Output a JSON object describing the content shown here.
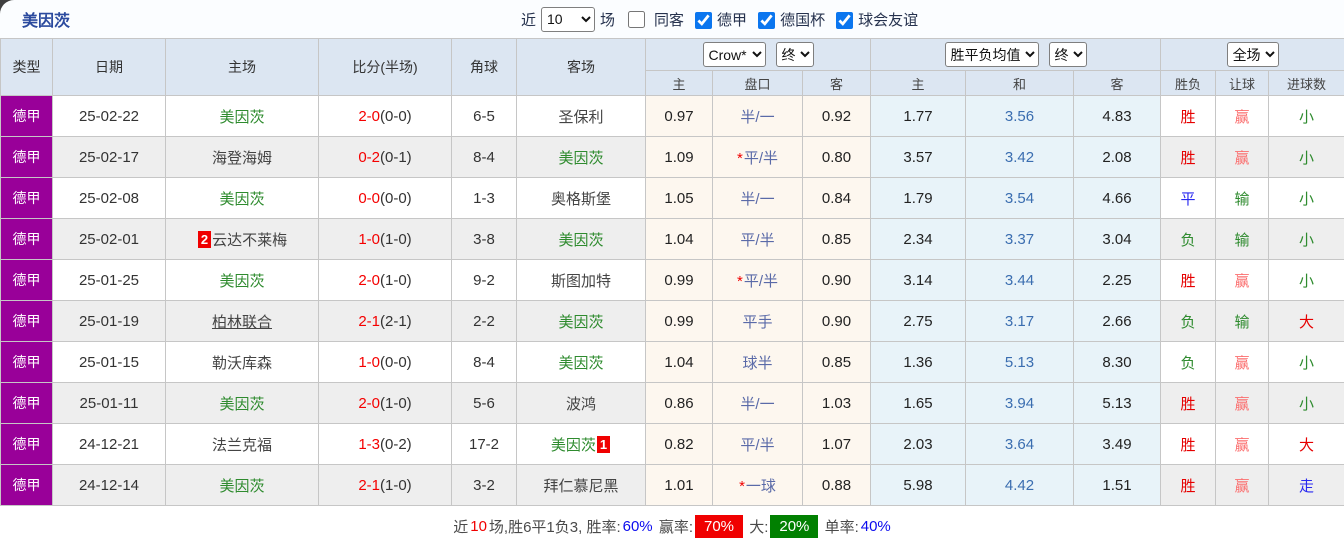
{
  "title": "美因茨",
  "topbar": {
    "near_label": "近",
    "count_selected": "10",
    "games_label": "场",
    "same_away_label": "同客",
    "same_away_checked": false,
    "filters": [
      {
        "label": "德甲",
        "checked": true
      },
      {
        "label": "德国杯",
        "checked": true
      },
      {
        "label": "球会友谊",
        "checked": true
      }
    ]
  },
  "header": {
    "type": "类型",
    "date": "日期",
    "home": "主场",
    "score": "比分(半场)",
    "corner": "角球",
    "away": "客场",
    "odds_company_selected": "Crow*",
    "odds_period_selected": "终",
    "avg_selected": "胜平负均值",
    "avg_period_selected": "终",
    "scope_selected": "全场",
    "sub": {
      "odds_home": "主",
      "handicap": "盘口",
      "odds_away": "客",
      "avg_home": "主",
      "avg_draw": "和",
      "avg_away": "客",
      "result": "胜负",
      "handicap_result": "让球",
      "goals": "进球数"
    }
  },
  "rows": [
    {
      "type": "德甲",
      "date": "25-02-22",
      "home": {
        "name": "美因茨",
        "green": true,
        "underline": false,
        "badge_before": "",
        "badge_after": ""
      },
      "score": {
        "ft": "2-0",
        "ht": "(0-0)"
      },
      "corner": "6-5",
      "away": {
        "name": "圣保利",
        "green": false,
        "underline": false,
        "badge_before": "",
        "badge_after": ""
      },
      "crow": {
        "home": "0.97",
        "star": false,
        "handicap": "半/一",
        "away": "0.92"
      },
      "avg": {
        "home": "1.77",
        "draw": "3.56",
        "away": "4.83"
      },
      "result": {
        "text": "胜",
        "color": "red"
      },
      "rq": {
        "text": "赢",
        "color": "pink"
      },
      "goal": {
        "text": "小",
        "color": "green"
      }
    },
    {
      "type": "德甲",
      "date": "25-02-17",
      "home": {
        "name": "海登海姆",
        "green": false,
        "underline": false,
        "badge_before": "",
        "badge_after": ""
      },
      "score": {
        "ft": "0-2",
        "ht": "(0-1)"
      },
      "corner": "8-4",
      "away": {
        "name": "美因茨",
        "green": true,
        "underline": false,
        "badge_before": "",
        "badge_after": ""
      },
      "crow": {
        "home": "1.09",
        "star": true,
        "handicap": "平/半",
        "away": "0.80"
      },
      "avg": {
        "home": "3.57",
        "draw": "3.42",
        "away": "2.08"
      },
      "result": {
        "text": "胜",
        "color": "red"
      },
      "rq": {
        "text": "赢",
        "color": "pink"
      },
      "goal": {
        "text": "小",
        "color": "green"
      }
    },
    {
      "type": "德甲",
      "date": "25-02-08",
      "home": {
        "name": "美因茨",
        "green": true,
        "underline": false,
        "badge_before": "",
        "badge_after": ""
      },
      "score": {
        "ft": "0-0",
        "ht": "(0-0)"
      },
      "corner": "1-3",
      "away": {
        "name": "奥格斯堡",
        "green": false,
        "underline": false,
        "badge_before": "",
        "badge_after": ""
      },
      "crow": {
        "home": "1.05",
        "star": false,
        "handicap": "半/一",
        "away": "0.84"
      },
      "avg": {
        "home": "1.79",
        "draw": "3.54",
        "away": "4.66"
      },
      "result": {
        "text": "平",
        "color": "blue"
      },
      "rq": {
        "text": "输",
        "color": "green"
      },
      "goal": {
        "text": "小",
        "color": "green"
      }
    },
    {
      "type": "德甲",
      "date": "25-02-01",
      "home": {
        "name": "云达不莱梅",
        "green": false,
        "underline": false,
        "badge_before": "2",
        "badge_after": ""
      },
      "score": {
        "ft": "1-0",
        "ht": "(1-0)"
      },
      "corner": "3-8",
      "away": {
        "name": "美因茨",
        "green": true,
        "underline": false,
        "badge_before": "",
        "badge_after": ""
      },
      "crow": {
        "home": "1.04",
        "star": false,
        "handicap": "平/半",
        "away": "0.85"
      },
      "avg": {
        "home": "2.34",
        "draw": "3.37",
        "away": "3.04"
      },
      "result": {
        "text": "负",
        "color": "green"
      },
      "rq": {
        "text": "输",
        "color": "green"
      },
      "goal": {
        "text": "小",
        "color": "green"
      }
    },
    {
      "type": "德甲",
      "date": "25-01-25",
      "home": {
        "name": "美因茨",
        "green": true,
        "underline": false,
        "badge_before": "",
        "badge_after": ""
      },
      "score": {
        "ft": "2-0",
        "ht": "(1-0)"
      },
      "corner": "9-2",
      "away": {
        "name": "斯图加特",
        "green": false,
        "underline": false,
        "badge_before": "",
        "badge_after": ""
      },
      "crow": {
        "home": "0.99",
        "star": true,
        "handicap": "平/半",
        "away": "0.90"
      },
      "avg": {
        "home": "3.14",
        "draw": "3.44",
        "away": "2.25"
      },
      "result": {
        "text": "胜",
        "color": "red"
      },
      "rq": {
        "text": "赢",
        "color": "pink"
      },
      "goal": {
        "text": "小",
        "color": "green"
      }
    },
    {
      "type": "德甲",
      "date": "25-01-19",
      "home": {
        "name": "柏林联合",
        "green": false,
        "underline": true,
        "badge_before": "",
        "badge_after": ""
      },
      "score": {
        "ft": "2-1",
        "ht": "(2-1)"
      },
      "corner": "2-2",
      "away": {
        "name": "美因茨",
        "green": true,
        "underline": false,
        "badge_before": "",
        "badge_after": ""
      },
      "crow": {
        "home": "0.99",
        "star": false,
        "handicap": "平手",
        "away": "0.90"
      },
      "avg": {
        "home": "2.75",
        "draw": "3.17",
        "away": "2.66"
      },
      "result": {
        "text": "负",
        "color": "green"
      },
      "rq": {
        "text": "输",
        "color": "green"
      },
      "goal": {
        "text": "大",
        "color": "red"
      }
    },
    {
      "type": "德甲",
      "date": "25-01-15",
      "home": {
        "name": "勒沃库森",
        "green": false,
        "underline": false,
        "badge_before": "",
        "badge_after": ""
      },
      "score": {
        "ft": "1-0",
        "ht": "(0-0)"
      },
      "corner": "8-4",
      "away": {
        "name": "美因茨",
        "green": true,
        "underline": false,
        "badge_before": "",
        "badge_after": ""
      },
      "crow": {
        "home": "1.04",
        "star": false,
        "handicap": "球半",
        "away": "0.85"
      },
      "avg": {
        "home": "1.36",
        "draw": "5.13",
        "away": "8.30"
      },
      "result": {
        "text": "负",
        "color": "green"
      },
      "rq": {
        "text": "赢",
        "color": "pink"
      },
      "goal": {
        "text": "小",
        "color": "green"
      }
    },
    {
      "type": "德甲",
      "date": "25-01-11",
      "home": {
        "name": "美因茨",
        "green": true,
        "underline": false,
        "badge_before": "",
        "badge_after": ""
      },
      "score": {
        "ft": "2-0",
        "ht": "(1-0)"
      },
      "corner": "5-6",
      "away": {
        "name": "波鸿",
        "green": false,
        "underline": false,
        "badge_before": "",
        "badge_after": ""
      },
      "crow": {
        "home": "0.86",
        "star": false,
        "handicap": "半/一",
        "away": "1.03"
      },
      "avg": {
        "home": "1.65",
        "draw": "3.94",
        "away": "5.13"
      },
      "result": {
        "text": "胜",
        "color": "red"
      },
      "rq": {
        "text": "赢",
        "color": "pink"
      },
      "goal": {
        "text": "小",
        "color": "green"
      }
    },
    {
      "type": "德甲",
      "date": "24-12-21",
      "home": {
        "name": "法兰克福",
        "green": false,
        "underline": false,
        "badge_before": "",
        "badge_after": ""
      },
      "score": {
        "ft": "1-3",
        "ht": "(0-2)"
      },
      "corner": "17-2",
      "away": {
        "name": "美因茨",
        "green": true,
        "underline": false,
        "badge_before": "",
        "badge_after": "1"
      },
      "crow": {
        "home": "0.82",
        "star": false,
        "handicap": "平/半",
        "away": "1.07"
      },
      "avg": {
        "home": "2.03",
        "draw": "3.64",
        "away": "3.49"
      },
      "result": {
        "text": "胜",
        "color": "red"
      },
      "rq": {
        "text": "赢",
        "color": "pink"
      },
      "goal": {
        "text": "大",
        "color": "red"
      }
    },
    {
      "type": "德甲",
      "date": "24-12-14",
      "home": {
        "name": "美因茨",
        "green": true,
        "underline": false,
        "badge_before": "",
        "badge_after": ""
      },
      "score": {
        "ft": "2-1",
        "ht": "(1-0)"
      },
      "corner": "3-2",
      "away": {
        "name": "拜仁慕尼黑",
        "green": false,
        "underline": false,
        "badge_before": "",
        "badge_after": ""
      },
      "crow": {
        "home": "1.01",
        "star": true,
        "handicap": "一球",
        "away": "0.88"
      },
      "avg": {
        "home": "5.98",
        "draw": "4.42",
        "away": "1.51"
      },
      "result": {
        "text": "胜",
        "color": "red"
      },
      "rq": {
        "text": "赢",
        "color": "pink"
      },
      "goal": {
        "text": "走",
        "color": "blue"
      }
    }
  ],
  "summary": {
    "segments": [
      {
        "text": "近",
        "style": "plain"
      },
      {
        "text": "10",
        "style": "red"
      },
      {
        "text": "场,胜6平1负3, 胜率:",
        "style": "plain"
      },
      {
        "text": "60%",
        "style": "blue"
      },
      {
        "text": " 赢率:",
        "style": "plain"
      },
      {
        "text": "70%",
        "style": "chip-red"
      },
      {
        "text": " 大:",
        "style": "plain"
      },
      {
        "text": "20%",
        "style": "chip-green"
      },
      {
        "text": " 单率:",
        "style": "plain"
      },
      {
        "text": "40%",
        "style": "blue"
      }
    ]
  },
  "colors": {
    "league_badge_bg": "#990099",
    "header_bg": "#dce6f2",
    "stripe_bg": "#eeeeee",
    "crow_bg": "#fdf7ef",
    "avg_bg": "#e8f3f9",
    "win_red": "#e60000",
    "draw_blue": "#2929f0",
    "lose_green": "#2e8b2e",
    "cover_pink": "#fb6e6e",
    "handicap_blue": "#5a6aa8",
    "avg_draw_blue": "#3a6db0",
    "score_red": "#f50000",
    "rank_badge_red": "#f00000",
    "chip_green": "#018001",
    "checkbox_accent": "#0b76ef",
    "title_blue": "#2b4a9e"
  }
}
